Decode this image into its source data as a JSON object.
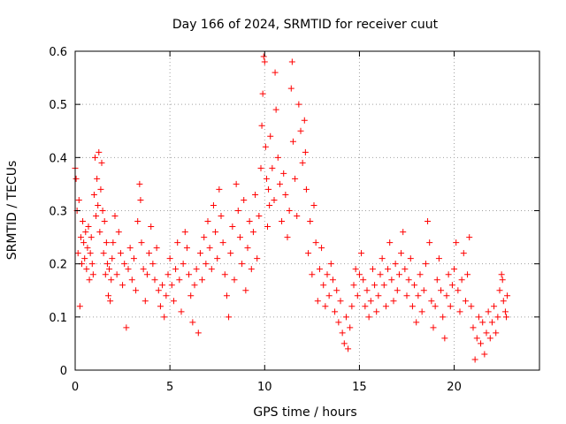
{
  "chart_data": {
    "type": "scatter",
    "title": "Day 166 of 2024, SRMTID for receiver cuut",
    "xlabel": "GPS time / hours",
    "ylabel": "SRMTID / TECUs",
    "xlim": [
      0,
      24.5
    ],
    "ylim": [
      0,
      0.6
    ],
    "xticks": [
      0,
      5,
      10,
      15,
      20
    ],
    "yticks": [
      0,
      0.1,
      0.2,
      0.3,
      0.4,
      0.5,
      0.6
    ],
    "xtick_labels": [
      "0",
      "5",
      "10",
      "15",
      "20"
    ],
    "ytick_labels": [
      "0",
      "0.1",
      "0.2",
      "0.3",
      "0.4",
      "0.5",
      "0.6"
    ],
    "grid": true,
    "marker": "+",
    "color": "#ff0000",
    "series": [
      {
        "name": "SRMTID",
        "points": [
          [
            0.0,
            0.38
          ],
          [
            0.05,
            0.36
          ],
          [
            0.1,
            0.3
          ],
          [
            0.15,
            0.22
          ],
          [
            0.2,
            0.32
          ],
          [
            0.25,
            0.12
          ],
          [
            0.3,
            0.25
          ],
          [
            0.35,
            0.2
          ],
          [
            0.4,
            0.28
          ],
          [
            0.45,
            0.24
          ],
          [
            0.5,
            0.21
          ],
          [
            0.55,
            0.26
          ],
          [
            0.6,
            0.19
          ],
          [
            0.65,
            0.23
          ],
          [
            0.7,
            0.27
          ],
          [
            0.75,
            0.17
          ],
          [
            0.8,
            0.22
          ],
          [
            0.85,
            0.25
          ],
          [
            0.9,
            0.2
          ],
          [
            0.95,
            0.18
          ],
          [
            1.0,
            0.33
          ],
          [
            1.05,
            0.4
          ],
          [
            1.1,
            0.29
          ],
          [
            1.15,
            0.36
          ],
          [
            1.2,
            0.31
          ],
          [
            1.25,
            0.41
          ],
          [
            1.3,
            0.26
          ],
          [
            1.35,
            0.34
          ],
          [
            1.4,
            0.39
          ],
          [
            1.45,
            0.3
          ],
          [
            1.5,
            0.22
          ],
          [
            1.55,
            0.28
          ],
          [
            1.6,
            0.18
          ],
          [
            1.65,
            0.24
          ],
          [
            1.7,
            0.2
          ],
          [
            1.75,
            0.14
          ],
          [
            1.8,
            0.19
          ],
          [
            1.85,
            0.13
          ],
          [
            1.9,
            0.17
          ],
          [
            1.95,
            0.21
          ],
          [
            2.0,
            0.24
          ],
          [
            2.1,
            0.29
          ],
          [
            2.2,
            0.18
          ],
          [
            2.3,
            0.26
          ],
          [
            2.4,
            0.22
          ],
          [
            2.5,
            0.16
          ],
          [
            2.6,
            0.2
          ],
          [
            2.7,
            0.08
          ],
          [
            2.8,
            0.19
          ],
          [
            2.9,
            0.23
          ],
          [
            3.0,
            0.17
          ],
          [
            3.1,
            0.21
          ],
          [
            3.2,
            0.15
          ],
          [
            3.3,
            0.28
          ],
          [
            3.4,
            0.35
          ],
          [
            3.45,
            0.32
          ],
          [
            3.5,
            0.24
          ],
          [
            3.6,
            0.19
          ],
          [
            3.7,
            0.13
          ],
          [
            3.8,
            0.18
          ],
          [
            3.9,
            0.22
          ],
          [
            4.0,
            0.27
          ],
          [
            4.1,
            0.2
          ],
          [
            4.2,
            0.17
          ],
          [
            4.3,
            0.23
          ],
          [
            4.4,
            0.15
          ],
          [
            4.5,
            0.12
          ],
          [
            4.6,
            0.16
          ],
          [
            4.7,
            0.1
          ],
          [
            4.8,
            0.14
          ],
          [
            4.9,
            0.18
          ],
          [
            5.0,
            0.21
          ],
          [
            5.1,
            0.16
          ],
          [
            5.2,
            0.13
          ],
          [
            5.3,
            0.19
          ],
          [
            5.4,
            0.24
          ],
          [
            5.5,
            0.17
          ],
          [
            5.6,
            0.11
          ],
          [
            5.7,
            0.2
          ],
          [
            5.8,
            0.26
          ],
          [
            5.9,
            0.23
          ],
          [
            6.0,
            0.18
          ],
          [
            6.1,
            0.14
          ],
          [
            6.2,
            0.09
          ],
          [
            6.3,
            0.16
          ],
          [
            6.4,
            0.19
          ],
          [
            6.5,
            0.07
          ],
          [
            6.6,
            0.22
          ],
          [
            6.7,
            0.17
          ],
          [
            6.8,
            0.25
          ],
          [
            6.9,
            0.2
          ],
          [
            7.0,
            0.28
          ],
          [
            7.1,
            0.23
          ],
          [
            7.2,
            0.19
          ],
          [
            7.3,
            0.31
          ],
          [
            7.4,
            0.26
          ],
          [
            7.5,
            0.21
          ],
          [
            7.6,
            0.34
          ],
          [
            7.7,
            0.29
          ],
          [
            7.8,
            0.24
          ],
          [
            7.9,
            0.18
          ],
          [
            8.0,
            0.14
          ],
          [
            8.1,
            0.1
          ],
          [
            8.2,
            0.22
          ],
          [
            8.3,
            0.27
          ],
          [
            8.4,
            0.17
          ],
          [
            8.5,
            0.35
          ],
          [
            8.6,
            0.3
          ],
          [
            8.7,
            0.25
          ],
          [
            8.8,
            0.2
          ],
          [
            8.9,
            0.32
          ],
          [
            9.0,
            0.15
          ],
          [
            9.1,
            0.23
          ],
          [
            9.2,
            0.28
          ],
          [
            9.3,
            0.19
          ],
          [
            9.4,
            0.26
          ],
          [
            9.5,
            0.33
          ],
          [
            9.6,
            0.21
          ],
          [
            9.7,
            0.29
          ],
          [
            9.8,
            0.38
          ],
          [
            9.85,
            0.46
          ],
          [
            9.9,
            0.52
          ],
          [
            9.95,
            0.59
          ],
          [
            10.0,
            0.58
          ],
          [
            10.05,
            0.42
          ],
          [
            10.1,
            0.36
          ],
          [
            10.15,
            0.27
          ],
          [
            10.2,
            0.34
          ],
          [
            10.25,
            0.31
          ],
          [
            10.3,
            0.44
          ],
          [
            10.4,
            0.38
          ],
          [
            10.5,
            0.32
          ],
          [
            10.55,
            0.56
          ],
          [
            10.6,
            0.49
          ],
          [
            10.7,
            0.4
          ],
          [
            10.8,
            0.35
          ],
          [
            10.9,
            0.28
          ],
          [
            11.0,
            0.37
          ],
          [
            11.1,
            0.33
          ],
          [
            11.2,
            0.25
          ],
          [
            11.3,
            0.3
          ],
          [
            11.4,
            0.53
          ],
          [
            11.45,
            0.58
          ],
          [
            11.5,
            0.43
          ],
          [
            11.6,
            0.36
          ],
          [
            11.7,
            0.29
          ],
          [
            11.8,
            0.5
          ],
          [
            11.9,
            0.45
          ],
          [
            12.0,
            0.39
          ],
          [
            12.1,
            0.47
          ],
          [
            12.15,
            0.41
          ],
          [
            12.2,
            0.34
          ],
          [
            12.3,
            0.22
          ],
          [
            12.4,
            0.28
          ],
          [
            12.5,
            0.18
          ],
          [
            12.6,
            0.31
          ],
          [
            12.7,
            0.24
          ],
          [
            12.8,
            0.13
          ],
          [
            12.9,
            0.19
          ],
          [
            13.0,
            0.23
          ],
          [
            13.1,
            0.16
          ],
          [
            13.2,
            0.12
          ],
          [
            13.3,
            0.18
          ],
          [
            13.4,
            0.14
          ],
          [
            13.5,
            0.2
          ],
          [
            13.6,
            0.17
          ],
          [
            13.7,
            0.11
          ],
          [
            13.8,
            0.15
          ],
          [
            13.9,
            0.09
          ],
          [
            14.0,
            0.13
          ],
          [
            14.1,
            0.07
          ],
          [
            14.2,
            0.05
          ],
          [
            14.3,
            0.1
          ],
          [
            14.4,
            0.04
          ],
          [
            14.5,
            0.08
          ],
          [
            14.6,
            0.12
          ],
          [
            14.7,
            0.16
          ],
          [
            14.8,
            0.19
          ],
          [
            14.9,
            0.14
          ],
          [
            15.0,
            0.18
          ],
          [
            15.1,
            0.22
          ],
          [
            15.2,
            0.17
          ],
          [
            15.3,
            0.12
          ],
          [
            15.4,
            0.15
          ],
          [
            15.5,
            0.1
          ],
          [
            15.6,
            0.13
          ],
          [
            15.7,
            0.19
          ],
          [
            15.8,
            0.16
          ],
          [
            15.9,
            0.11
          ],
          [
            16.0,
            0.14
          ],
          [
            16.1,
            0.18
          ],
          [
            16.2,
            0.21
          ],
          [
            16.3,
            0.16
          ],
          [
            16.4,
            0.12
          ],
          [
            16.5,
            0.19
          ],
          [
            16.6,
            0.24
          ],
          [
            16.7,
            0.17
          ],
          [
            16.8,
            0.13
          ],
          [
            16.9,
            0.2
          ],
          [
            17.0,
            0.15
          ],
          [
            17.1,
            0.18
          ],
          [
            17.2,
            0.22
          ],
          [
            17.3,
            0.26
          ],
          [
            17.4,
            0.19
          ],
          [
            17.5,
            0.14
          ],
          [
            17.6,
            0.17
          ],
          [
            17.7,
            0.21
          ],
          [
            17.8,
            0.12
          ],
          [
            17.9,
            0.16
          ],
          [
            18.0,
            0.09
          ],
          [
            18.1,
            0.14
          ],
          [
            18.2,
            0.18
          ],
          [
            18.3,
            0.11
          ],
          [
            18.4,
            0.15
          ],
          [
            18.5,
            0.2
          ],
          [
            18.6,
            0.28
          ],
          [
            18.7,
            0.24
          ],
          [
            18.8,
            0.13
          ],
          [
            18.9,
            0.08
          ],
          [
            19.0,
            0.12
          ],
          [
            19.1,
            0.17
          ],
          [
            19.2,
            0.21
          ],
          [
            19.3,
            0.15
          ],
          [
            19.4,
            0.1
          ],
          [
            19.5,
            0.06
          ],
          [
            19.6,
            0.14
          ],
          [
            19.7,
            0.18
          ],
          [
            19.8,
            0.12
          ],
          [
            19.9,
            0.16
          ],
          [
            20.0,
            0.19
          ],
          [
            20.1,
            0.24
          ],
          [
            20.2,
            0.15
          ],
          [
            20.3,
            0.11
          ],
          [
            20.4,
            0.17
          ],
          [
            20.5,
            0.22
          ],
          [
            20.6,
            0.13
          ],
          [
            20.7,
            0.18
          ],
          [
            20.8,
            0.25
          ],
          [
            20.9,
            0.12
          ],
          [
            21.0,
            0.08
          ],
          [
            21.1,
            0.02
          ],
          [
            21.2,
            0.06
          ],
          [
            21.3,
            0.1
          ],
          [
            21.4,
            0.05
          ],
          [
            21.5,
            0.09
          ],
          [
            21.6,
            0.03
          ],
          [
            21.7,
            0.07
          ],
          [
            21.8,
            0.11
          ],
          [
            21.9,
            0.06
          ],
          [
            22.0,
            0.09
          ],
          [
            22.1,
            0.12
          ],
          [
            22.2,
            0.07
          ],
          [
            22.3,
            0.1
          ],
          [
            22.4,
            0.15
          ],
          [
            22.5,
            0.18
          ],
          [
            22.55,
            0.17
          ],
          [
            22.6,
            0.13
          ],
          [
            22.7,
            0.11
          ],
          [
            22.75,
            0.1
          ],
          [
            22.8,
            0.14
          ]
        ]
      }
    ]
  }
}
